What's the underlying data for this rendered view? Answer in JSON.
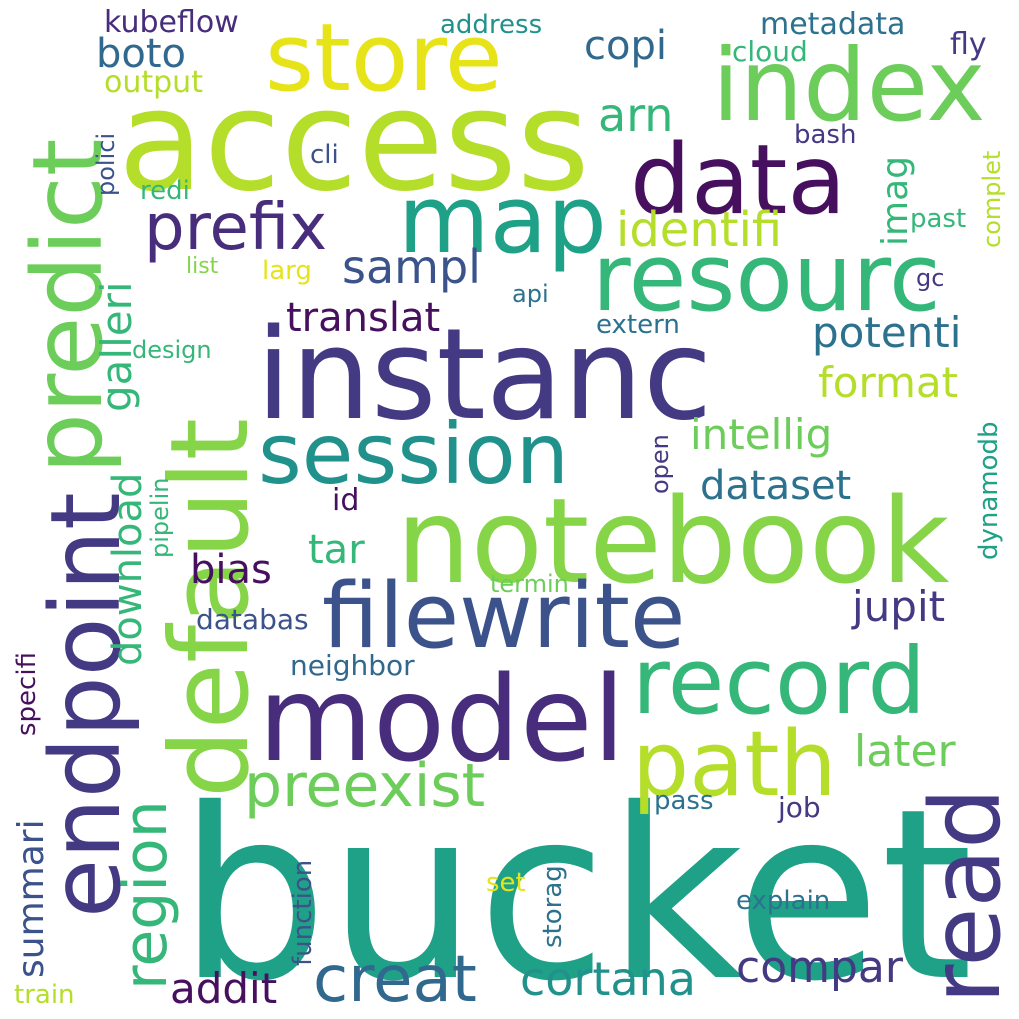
{
  "palette": {
    "dark_purple": "#46105f",
    "indigo": "#443983",
    "blue": "#31688e",
    "teal": "#21918c",
    "sea_green": "#1fa187",
    "green": "#35b779",
    "light_green": "#6ccd5a",
    "lime": "#86d549",
    "yellow_green": "#b5de2b",
    "yellow": "#e6e419"
  },
  "words": [
    {
      "text": "bucket"
    },
    {
      "text": "instanc"
    },
    {
      "text": "access"
    },
    {
      "text": "notebook"
    },
    {
      "text": "default"
    },
    {
      "text": "endpoint"
    },
    {
      "text": "model"
    },
    {
      "text": "filewrite"
    },
    {
      "text": "data"
    },
    {
      "text": "index"
    },
    {
      "text": "store"
    },
    {
      "text": "resourc"
    },
    {
      "text": "predict"
    },
    {
      "text": "map"
    },
    {
      "text": "session"
    },
    {
      "text": "record"
    },
    {
      "text": "path"
    },
    {
      "text": "read"
    },
    {
      "text": "prefix"
    },
    {
      "text": "creat"
    },
    {
      "text": "preexist"
    },
    {
      "text": "region"
    },
    {
      "text": "compar"
    },
    {
      "text": "cortana"
    },
    {
      "text": "identifi"
    },
    {
      "text": "sampl"
    },
    {
      "text": "translat"
    },
    {
      "text": "potenti"
    },
    {
      "text": "format"
    },
    {
      "text": "intellig"
    },
    {
      "text": "dataset"
    },
    {
      "text": "galleri"
    },
    {
      "text": "download"
    },
    {
      "text": "jupit"
    },
    {
      "text": "bias"
    },
    {
      "text": "addit"
    },
    {
      "text": "later"
    },
    {
      "text": "arn"
    },
    {
      "text": "copi"
    },
    {
      "text": "boto"
    },
    {
      "text": "imag"
    },
    {
      "text": "tar"
    },
    {
      "text": "summari"
    },
    {
      "text": "kubeflow"
    },
    {
      "text": "metadata"
    },
    {
      "text": "address"
    },
    {
      "text": "cloud"
    },
    {
      "text": "fly"
    },
    {
      "text": "output"
    },
    {
      "text": "cli"
    },
    {
      "text": "bash"
    },
    {
      "text": "redi"
    },
    {
      "text": "polici"
    },
    {
      "text": "complet"
    },
    {
      "text": "past"
    },
    {
      "text": "list"
    },
    {
      "text": "larg"
    },
    {
      "text": "api"
    },
    {
      "text": "gc"
    },
    {
      "text": "extern"
    },
    {
      "text": "design"
    },
    {
      "text": "pipelin"
    },
    {
      "text": "open"
    },
    {
      "text": "dynamodb"
    },
    {
      "text": "id"
    },
    {
      "text": "termin"
    },
    {
      "text": "databas"
    },
    {
      "text": "neighbor"
    },
    {
      "text": "specifi"
    },
    {
      "text": "pass"
    },
    {
      "text": "job"
    },
    {
      "text": "function"
    },
    {
      "text": "storag"
    },
    {
      "text": "set"
    },
    {
      "text": "explain"
    },
    {
      "text": "train"
    }
  ]
}
